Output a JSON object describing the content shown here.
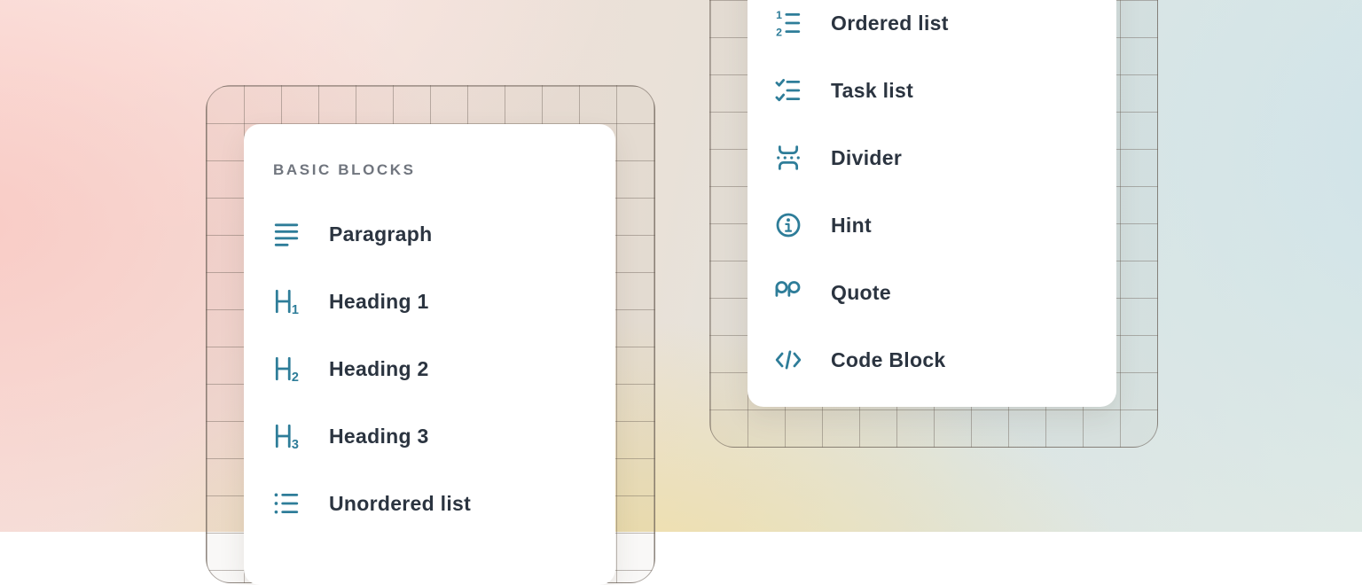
{
  "colors": {
    "icon": "#2e7d99",
    "item_text": "#2b3440",
    "section_label": "#70757e",
    "card_background": "#ffffff"
  },
  "left_panel": {
    "section_label": "BASIC BLOCKS",
    "items": [
      {
        "id": "paragraph",
        "icon": "paragraph-icon",
        "label": "Paragraph"
      },
      {
        "id": "heading-1",
        "icon": "heading-1-icon",
        "label": "Heading 1"
      },
      {
        "id": "heading-2",
        "icon": "heading-2-icon",
        "label": "Heading 2"
      },
      {
        "id": "heading-3",
        "icon": "heading-3-icon",
        "label": "Heading 3"
      },
      {
        "id": "unordered-list",
        "icon": "unordered-list-icon",
        "label": "Unordered list"
      }
    ]
  },
  "right_panel": {
    "items": [
      {
        "id": "ordered-list",
        "icon": "ordered-list-icon",
        "label": "Ordered list"
      },
      {
        "id": "task-list",
        "icon": "task-list-icon",
        "label": "Task list"
      },
      {
        "id": "divider",
        "icon": "divider-icon",
        "label": "Divider"
      },
      {
        "id": "hint",
        "icon": "hint-icon",
        "label": "Hint"
      },
      {
        "id": "quote",
        "icon": "quote-icon",
        "label": "Quote"
      },
      {
        "id": "code-block",
        "icon": "code-block-icon",
        "label": "Code Block"
      }
    ]
  }
}
